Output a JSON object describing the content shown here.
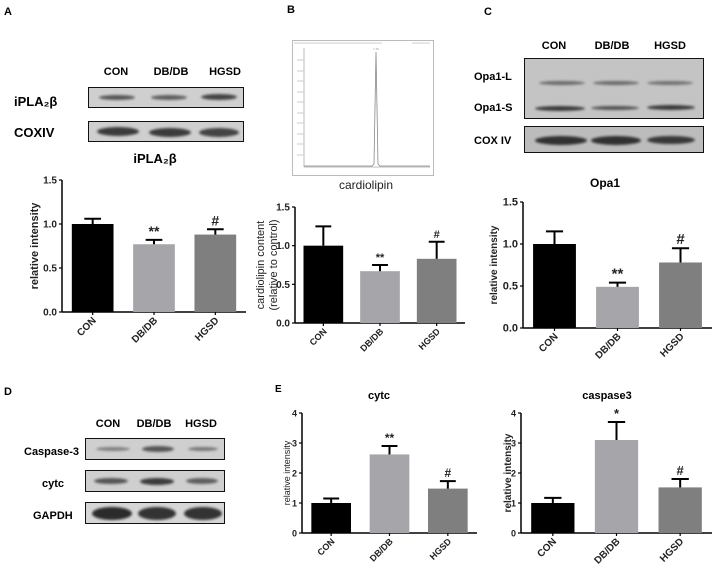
{
  "panels": {
    "A": {
      "letter": "A",
      "lanes": [
        "CON",
        "DB/DB",
        "HGSD"
      ],
      "blot_rows": [
        "iPLA₂β",
        "COXIV"
      ],
      "chart_title": "iPLA₂β"
    },
    "B": {
      "letter": "B",
      "chromatogram_caption": "cardiolipin"
    },
    "C": {
      "letter": "C",
      "lanes": [
        "CON",
        "DB/DB",
        "HGSD"
      ],
      "blot_rows": [
        "Opa1-L",
        "Opa1-S",
        "COX IV"
      ],
      "chart_title": "Opa1"
    },
    "D": {
      "letter": "D",
      "lanes": [
        "CON",
        "DB/DB",
        "HGSD"
      ],
      "blot_rows": [
        "Caspase-3",
        "cytc",
        "GAPDH"
      ]
    },
    "E": {
      "letter": "E"
    }
  },
  "colors": {
    "CON": "#000000",
    "DB/DB": "#a6a6aa",
    "HGSD": "#7f7f7f"
  },
  "chart_data": [
    {
      "id": "A",
      "type": "bar",
      "title": "iPLA₂β",
      "categories": [
        "CON",
        "DB/DB",
        "HGSD"
      ],
      "values": [
        1.0,
        0.77,
        0.88
      ],
      "errors": [
        0.06,
        0.05,
        0.06
      ],
      "annotations": [
        "",
        "**",
        "#"
      ],
      "xlabel": "",
      "ylabel": "relative intensity",
      "ylim": [
        0,
        1.5
      ],
      "yticks": [
        "0.0",
        "0.5",
        "1.0",
        "1.5"
      ],
      "grid": false,
      "legend": "none"
    },
    {
      "id": "B",
      "type": "bar",
      "title": "",
      "categories": [
        "CON",
        "DB/DB",
        "HGSD"
      ],
      "values": [
        1.0,
        0.67,
        0.83
      ],
      "errors": [
        0.25,
        0.08,
        0.22
      ],
      "annotations": [
        "",
        "**",
        "#"
      ],
      "xlabel": "",
      "ylabel": "cardiolipin content (relative to control)",
      "ylabel_lines": [
        "cardiolipin content",
        "(relative to control)"
      ],
      "ylim": [
        0,
        1.5
      ],
      "yticks": [
        "0.0",
        "0.5",
        "1.0",
        "1.5"
      ],
      "grid": false,
      "legend": "none"
    },
    {
      "id": "C",
      "type": "bar",
      "title": "Opa1",
      "categories": [
        "CON",
        "DB/DB",
        "HGSD"
      ],
      "values": [
        1.0,
        0.49,
        0.78
      ],
      "errors": [
        0.15,
        0.05,
        0.17
      ],
      "annotations": [
        "",
        "**",
        "#"
      ],
      "xlabel": "",
      "ylabel": "relative intensity",
      "ylim": [
        0,
        1.5
      ],
      "yticks": [
        "0.0",
        "0.5",
        "1.0",
        "1.5"
      ],
      "grid": false,
      "legend": "none"
    },
    {
      "id": "E-cytc",
      "type": "bar",
      "title": "cytc",
      "categories": [
        "CON",
        "DB/DB",
        "HGSD"
      ],
      "values": [
        1.0,
        2.62,
        1.48
      ],
      "errors": [
        0.15,
        0.28,
        0.25
      ],
      "annotations": [
        "",
        "**",
        "#"
      ],
      "xlabel": "",
      "ylabel": "relative intensity",
      "ylim": [
        0,
        4
      ],
      "yticks": [
        "0",
        "1",
        "2",
        "3",
        "4"
      ],
      "grid": false,
      "legend": "none"
    },
    {
      "id": "E-caspase3",
      "type": "bar",
      "title": "caspase3",
      "categories": [
        "CON",
        "DB/DB",
        "HGSD"
      ],
      "values": [
        1.0,
        3.1,
        1.52
      ],
      "errors": [
        0.17,
        0.6,
        0.28
      ],
      "annotations": [
        "",
        "*",
        "#"
      ],
      "xlabel": "",
      "ylabel": "relative intensity",
      "ylim": [
        0,
        4
      ],
      "yticks": [
        "0",
        "1",
        "2",
        "3",
        "4"
      ],
      "grid": false,
      "legend": "none"
    }
  ]
}
